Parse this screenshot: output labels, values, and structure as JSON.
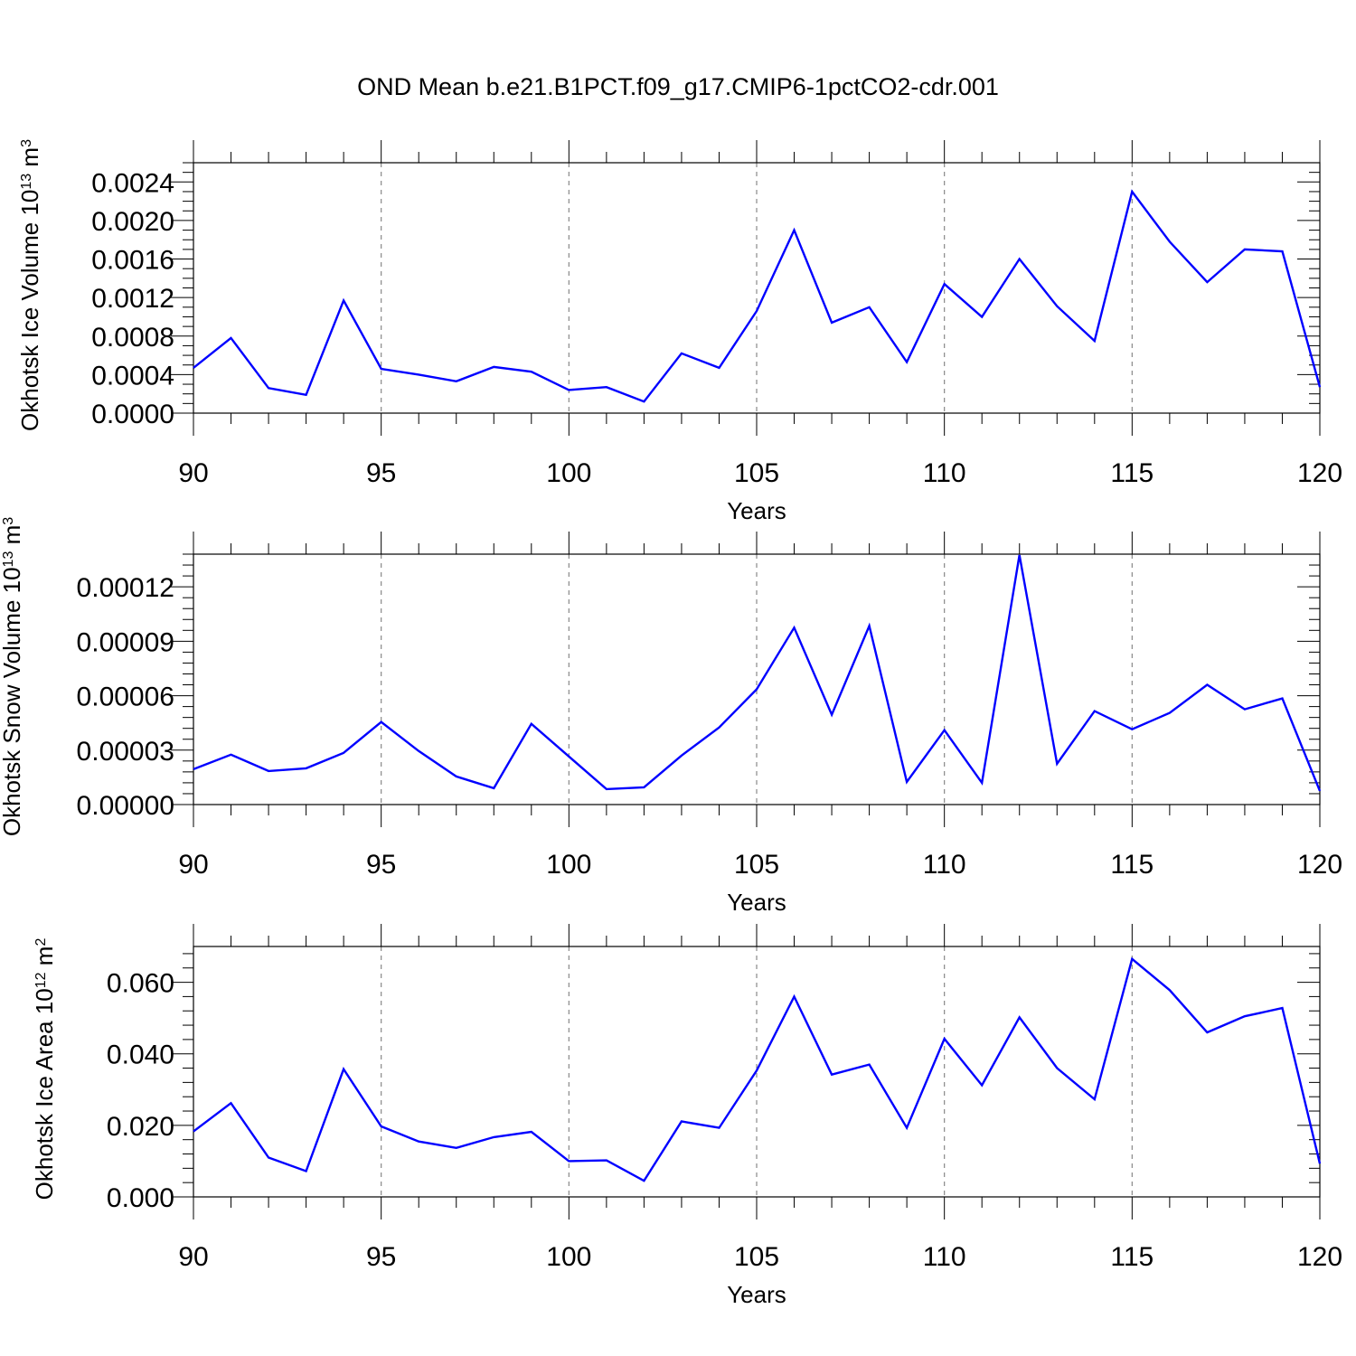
{
  "title": "OND Mean b.e21.B1PCT.f09_g17.CMIP6-1pctCO2-cdr.001",
  "colors": {
    "line": "#0000ff",
    "grid": "#888888",
    "axes": "#000000"
  },
  "chart_data": [
    {
      "type": "line",
      "xlabel": "Years",
      "ylabel": {
        "text": "Okhotsk Ice Volume 10",
        "exp1": "13",
        "unit": " m",
        "exp2": "3"
      },
      "xlim": [
        90,
        120
      ],
      "ylim": [
        0,
        0.0026
      ],
      "x_ticks": [
        90,
        95,
        100,
        105,
        110,
        115,
        120
      ],
      "x_tick_labels": [
        "90",
        "95",
        "100",
        "105",
        "110",
        "115",
        "120"
      ],
      "y_ticks": [
        0,
        0.0004,
        0.0008,
        0.0012,
        0.0016,
        0.002,
        0.0024
      ],
      "y_tick_labels": [
        "0.0000",
        "0.0004",
        "0.0008",
        "0.0012",
        "0.0016",
        "0.0020",
        "0.0024"
      ],
      "y_minor_step": 0.0001,
      "grid": "x-dashed",
      "x": [
        90,
        91,
        92,
        93,
        94,
        95,
        96,
        97,
        98,
        99,
        100,
        101,
        102,
        103,
        104,
        105,
        106,
        107,
        108,
        109,
        110,
        111,
        112,
        113,
        114,
        115,
        116,
        117,
        118,
        119,
        120
      ],
      "values": [
        0.00047,
        0.00078,
        0.00026,
        0.00019,
        0.00117,
        0.00046,
        0.0004,
        0.00033,
        0.00048,
        0.00043,
        0.00024,
        0.00027,
        0.00012,
        0.00062,
        0.00047,
        0.00106,
        0.0019,
        0.00094,
        0.0011,
        0.00053,
        0.00134,
        0.001,
        0.0016,
        0.00111,
        0.00075,
        0.0023,
        0.00178,
        0.00136,
        0.0017,
        0.00168,
        0.00027
      ]
    },
    {
      "type": "line",
      "xlabel": "Years",
      "ylabel": {
        "text": "Okhotsk Snow Volume 10",
        "exp1": "13",
        "unit": " m",
        "exp2": "3"
      },
      "xlim": [
        90,
        120
      ],
      "ylim": [
        0,
        0.000138
      ],
      "x_ticks": [
        90,
        95,
        100,
        105,
        110,
        115,
        120
      ],
      "x_tick_labels": [
        "90",
        "95",
        "100",
        "105",
        "110",
        "115",
        "120"
      ],
      "y_ticks": [
        0,
        3e-05,
        6e-05,
        9e-05,
        0.00012
      ],
      "y_tick_labels": [
        "0.00000",
        "0.00003",
        "0.00006",
        "0.00009",
        "0.00012"
      ],
      "y_minor_step": 6e-06,
      "grid": "x-dashed",
      "x": [
        90,
        91,
        92,
        93,
        94,
        95,
        96,
        97,
        98,
        99,
        100,
        101,
        102,
        103,
        104,
        105,
        106,
        107,
        108,
        109,
        110,
        111,
        112,
        113,
        114,
        115,
        116,
        117,
        118,
        119,
        120
      ],
      "values": [
        1.95e-05,
        2.75e-05,
        1.85e-05,
        2e-05,
        2.85e-05,
        4.55e-05,
        2.95e-05,
        1.55e-05,
        9e-06,
        4.45e-05,
        2.65e-05,
        8.5e-06,
        9.5e-06,
        2.7e-05,
        4.25e-05,
        6.35e-05,
        9.75e-05,
        4.95e-05,
        9.85e-05,
        1.25e-05,
        4.1e-05,
        1.2e-05,
        0.0001375,
        2.25e-05,
        5.15e-05,
        4.15e-05,
        5.05e-05,
        6.6e-05,
        5.25e-05,
        5.85e-05,
        7.5e-06
      ]
    },
    {
      "type": "line",
      "xlabel": "Years",
      "ylabel": {
        "text": "Okhotsk Ice Area 10",
        "exp1": "12",
        "unit": " m",
        "exp2": "2"
      },
      "xlim": [
        90,
        120
      ],
      "ylim": [
        0,
        0.07
      ],
      "x_ticks": [
        90,
        95,
        100,
        105,
        110,
        115,
        120
      ],
      "x_tick_labels": [
        "90",
        "95",
        "100",
        "105",
        "110",
        "115",
        "120"
      ],
      "y_ticks": [
        0,
        0.02,
        0.04,
        0.06
      ],
      "y_tick_labels": [
        "0.000",
        "0.020",
        "0.040",
        "0.060"
      ],
      "y_minor_step": 0.004,
      "grid": "x-dashed",
      "x": [
        90,
        91,
        92,
        93,
        94,
        95,
        96,
        97,
        98,
        99,
        100,
        101,
        102,
        103,
        104,
        105,
        106,
        107,
        108,
        109,
        110,
        111,
        112,
        113,
        114,
        115,
        116,
        117,
        118,
        119,
        120
      ],
      "values": [
        0.0183,
        0.0262,
        0.011,
        0.0072,
        0.0357,
        0.0197,
        0.0155,
        0.0137,
        0.0167,
        0.0182,
        0.01,
        0.0102,
        0.0045,
        0.0211,
        0.0193,
        0.0353,
        0.056,
        0.0342,
        0.037,
        0.0193,
        0.0442,
        0.0312,
        0.0502,
        0.036,
        0.0273,
        0.0665,
        0.0578,
        0.046,
        0.0505,
        0.0528,
        0.0093
      ]
    }
  ]
}
